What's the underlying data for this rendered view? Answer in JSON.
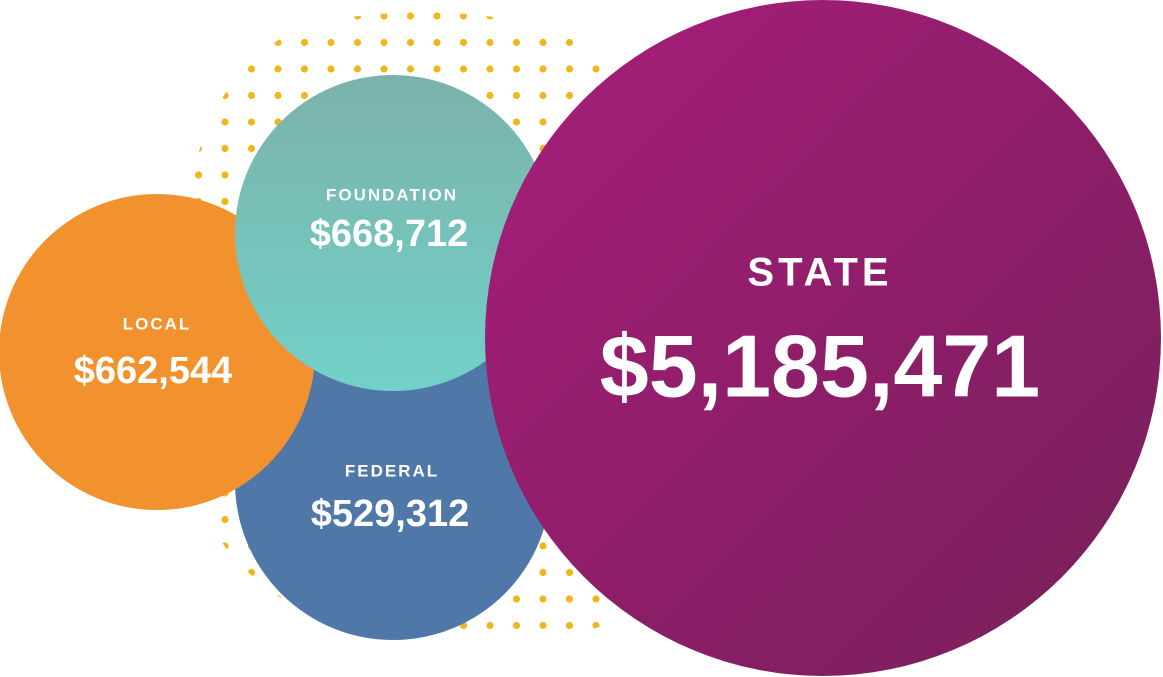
{
  "bubbles": [
    {
      "label": "FEDERAL",
      "amount": "$529,312"
    },
    {
      "label": "LOCAL",
      "amount": "$662,544"
    },
    {
      "label": "FOUNDATION",
      "amount": "$668,712"
    },
    {
      "label": "STATE",
      "amount": "$5,185,471"
    }
  ]
}
